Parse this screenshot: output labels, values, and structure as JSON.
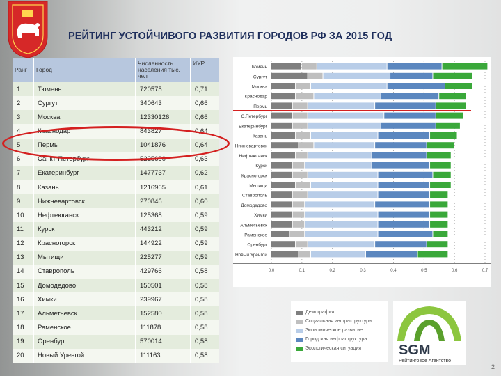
{
  "title": "РЕЙТИНГ УСТОЙЧИВОГО РАЗВИТИЯ ГОРОДОВ РФ ЗА 2015 ГОД",
  "page_number": "2",
  "table": {
    "headers": [
      "Ранг",
      "Город",
      "Численность населения тыс. чел",
      "ИУР"
    ],
    "rows": [
      {
        "rank": "1",
        "city": "Тюмень",
        "population": "720575",
        "iur": "0,71"
      },
      {
        "rank": "2",
        "city": "Сургут",
        "population": "340643",
        "iur": "0,66"
      },
      {
        "rank": "3",
        "city": "Москва",
        "population": "12330126",
        "iur": "0,66"
      },
      {
        "rank": "4",
        "city": "Краснодар",
        "population": "843827",
        "iur": "0,64"
      },
      {
        "rank": "5",
        "city": "Пермь",
        "population": "1041876",
        "iur": "0,64"
      },
      {
        "rank": "6",
        "city": "Санкт-Петербург",
        "population": "5225690",
        "iur": "0,63"
      },
      {
        "rank": "7",
        "city": "Екатеринбург",
        "population": "1477737",
        "iur": "0,62"
      },
      {
        "rank": "8",
        "city": "Казань",
        "population": "1216965",
        "iur": "0,61"
      },
      {
        "rank": "9",
        "city": "Нижневартовск",
        "population": "270846",
        "iur": "0,60"
      },
      {
        "rank": "10",
        "city": "Нефтеюганск",
        "population": "125368",
        "iur": "0,59"
      },
      {
        "rank": "11",
        "city": "Курск",
        "population": "443212",
        "iur": "0,59"
      },
      {
        "rank": "12",
        "city": "Красногорск",
        "population": "144922",
        "iur": "0,59"
      },
      {
        "rank": "13",
        "city": "Мытищи",
        "population": "225277",
        "iur": "0,59"
      },
      {
        "rank": "14",
        "city": "Ставрополь",
        "population": "429766",
        "iur": "0,58"
      },
      {
        "rank": "15",
        "city": "Домодедово",
        "population": "150501",
        "iur": "0,58"
      },
      {
        "rank": "16",
        "city": "Химки",
        "population": "239967",
        "iur": "0,58"
      },
      {
        "rank": "17",
        "city": "Альметьевск",
        "population": "152580",
        "iur": "0,58"
      },
      {
        "rank": "18",
        "city": "Раменское",
        "population": "111878",
        "iur": "0,58"
      },
      {
        "rank": "19",
        "city": "Оренбург",
        "population": "570014",
        "iur": "0,58"
      },
      {
        "rank": "20",
        "city": "Новый Уренгой",
        "population": "111163",
        "iur": "0,58"
      }
    ]
  },
  "chart_data": {
    "type": "bar",
    "stacked": true,
    "orientation": "horizontal",
    "categories": [
      "Тюмень",
      "Сургут",
      "Москва",
      "Краснодар",
      "Пермь",
      "С.Петербург",
      "Екатеринбург",
      "Казань",
      "Нижневартовск",
      "Нефтеюганск",
      "Курск",
      "Красногорск",
      "Мытищи",
      "Ставрополь",
      "Домодедово",
      "Химки",
      "Альметьевск",
      "Раменское",
      "Оренбург",
      "Новый Уренгой"
    ],
    "series": [
      {
        "name": "Демография",
        "color": "#7f7f7f",
        "values": [
          0.1,
          0.12,
          0.08,
          0.08,
          0.07,
          0.07,
          0.07,
          0.08,
          0.09,
          0.08,
          0.07,
          0.07,
          0.08,
          0.07,
          0.07,
          0.07,
          0.07,
          0.06,
          0.08,
          0.09
        ]
      },
      {
        "name": "Социальная инфраструктура",
        "color": "#bfbfbf",
        "values": [
          0.05,
          0.05,
          0.05,
          0.06,
          0.05,
          0.05,
          0.05,
          0.05,
          0.05,
          0.04,
          0.04,
          0.05,
          0.05,
          0.05,
          0.04,
          0.04,
          0.04,
          0.05,
          0.04,
          0.04
        ]
      },
      {
        "name": "Экономическое развитие",
        "color": "#b8cde8",
        "values": [
          0.23,
          0.22,
          0.25,
          0.22,
          0.22,
          0.25,
          0.24,
          0.22,
          0.2,
          0.21,
          0.22,
          0.23,
          0.22,
          0.23,
          0.23,
          0.24,
          0.24,
          0.24,
          0.22,
          0.18
        ]
      },
      {
        "name": "Городская инфраструктура",
        "color": "#5b87bf",
        "values": [
          0.18,
          0.14,
          0.19,
          0.19,
          0.2,
          0.17,
          0.18,
          0.17,
          0.17,
          0.18,
          0.19,
          0.18,
          0.17,
          0.17,
          0.18,
          0.17,
          0.17,
          0.18,
          0.17,
          0.17
        ]
      },
      {
        "name": "Экологическая ситуация",
        "color": "#3aa83a",
        "values": [
          0.15,
          0.13,
          0.09,
          0.09,
          0.1,
          0.09,
          0.08,
          0.09,
          0.09,
          0.08,
          0.07,
          0.06,
          0.07,
          0.06,
          0.06,
          0.06,
          0.06,
          0.05,
          0.07,
          0.1
        ]
      }
    ],
    "xlim": [
      0,
      0.7
    ],
    "xticks": [
      "0,0",
      "0,1",
      "0,2",
      "0,3",
      "0,4",
      "0,5",
      "0,6",
      "0,7"
    ],
    "highlight_category": "Пермь",
    "highlight_color": "#d42020"
  },
  "logo": {
    "name": "SGM",
    "tagline": "Рейтинговое Агентство"
  }
}
